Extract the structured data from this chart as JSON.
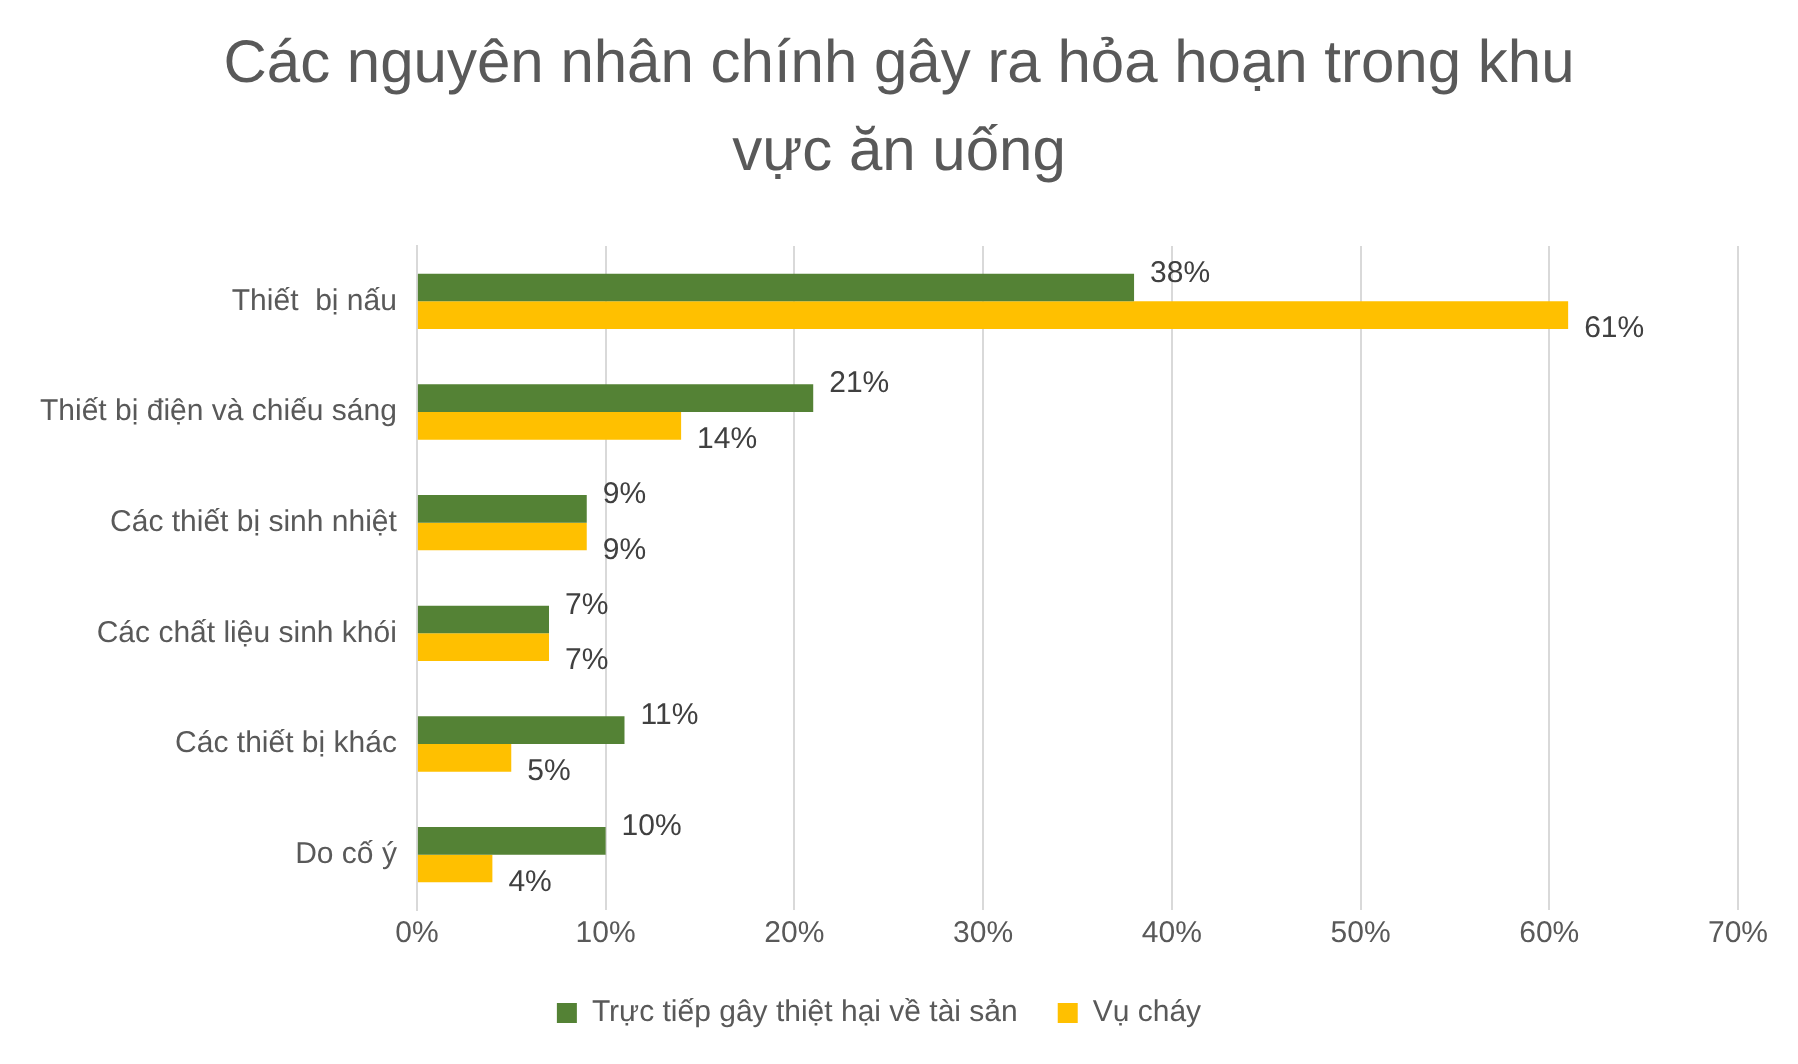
{
  "chart_data": {
    "type": "bar",
    "orientation": "horizontal",
    "title": "Các nguyên nhân chính gây ra hỏa hoạn trong khu vực ăn uống",
    "categories": [
      "Thiết  bị nấu",
      "Thiết bị điện và chiếu sáng",
      "Các thiết bị sinh nhiệt",
      "Các chất liệu sinh khói",
      "Các thiết bị khác",
      "Do cố ý"
    ],
    "series": [
      {
        "name": "Trực tiếp gây thiệt hại về tài sản",
        "color": "#548235",
        "values": [
          38,
          21,
          9,
          7,
          11,
          10
        ],
        "value_labels": [
          "38%",
          "21%",
          "9%",
          "7%",
          "11%",
          "10%"
        ]
      },
      {
        "name": "Vụ cháy",
        "color": "#ffc000",
        "values": [
          61,
          14,
          9,
          7,
          5,
          4
        ],
        "value_labels": [
          "61%",
          "14%",
          "9%",
          "7%",
          "5%",
          "4%"
        ]
      }
    ],
    "xlim": [
      0,
      70
    ],
    "xticks": [
      {
        "value": 0,
        "label": "0%"
      },
      {
        "value": 10,
        "label": "10%"
      },
      {
        "value": 20,
        "label": "20%"
      },
      {
        "value": 30,
        "label": "30%"
      },
      {
        "value": 40,
        "label": "40%"
      },
      {
        "value": 50,
        "label": "50%"
      },
      {
        "value": 60,
        "label": "60%"
      },
      {
        "value": 70,
        "label": "70%"
      }
    ],
    "grid": "x",
    "legend": "bottom"
  }
}
